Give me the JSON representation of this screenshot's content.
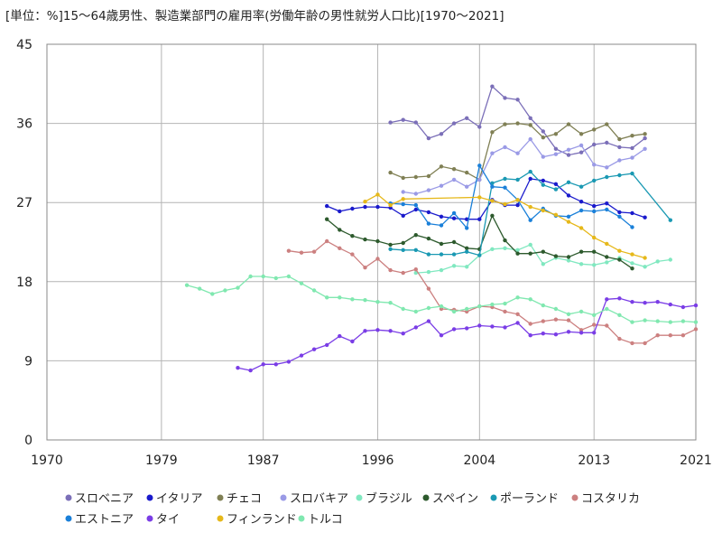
{
  "chart_data": {
    "type": "line",
    "title": "[単位：%]15～64歳男性、製造業部門の雇用率(労働年齢の男性就労人口比)[1970～2021]",
    "xlabel": "",
    "ylabel": "",
    "xlim": [
      1970,
      2021
    ],
    "ylim": [
      0,
      45
    ],
    "x_ticks": [
      1970,
      1979,
      1987,
      1996,
      2004,
      2013,
      2021
    ],
    "y_ticks": [
      0,
      9,
      18,
      27,
      36,
      45
    ],
    "grid": true,
    "legend_position": "bottom",
    "series": [
      {
        "name": "スロベニア",
        "color": "#7b6fb8",
        "x": [
          1997,
          1998,
          1999,
          2000,
          2001,
          2002,
          2003,
          2004,
          2005,
          2006,
          2007,
          2008,
          2009,
          2010,
          2011,
          2012,
          2013,
          2014,
          2015,
          2016,
          2017
        ],
        "y": [
          36.1,
          36.4,
          36.1,
          34.3,
          34.8,
          36.0,
          36.6,
          35.6,
          40.2,
          38.9,
          38.7,
          36.6,
          35.1,
          33.1,
          32.4,
          32.7,
          33.6,
          33.8,
          33.3,
          33.2,
          34.3
        ]
      },
      {
        "name": "イタリア",
        "color": "#1a1acc",
        "x": [
          1992,
          1993,
          1994,
          1995,
          1996,
          1997,
          1998,
          1999,
          2000,
          2001,
          2002,
          2003,
          2004,
          2005,
          2006,
          2007,
          2008,
          2009,
          2010,
          2011,
          2012,
          2013,
          2014,
          2015,
          2016,
          2017
        ],
        "y": [
          26.6,
          26.0,
          26.3,
          26.5,
          26.5,
          26.4,
          25.5,
          26.2,
          25.9,
          25.4,
          25.2,
          25.1,
          25.1,
          27.3,
          26.7,
          26.7,
          29.7,
          29.5,
          29.1,
          27.8,
          27.1,
          26.6,
          26.9,
          25.9,
          25.8,
          25.3
        ]
      },
      {
        "name": "チェコ",
        "color": "#808055",
        "x": [
          1997,
          1998,
          1999,
          2000,
          2001,
          2002,
          2003,
          2004,
          2005,
          2006,
          2007,
          2008,
          2009,
          2010,
          2011,
          2012,
          2013,
          2014,
          2015,
          2016,
          2017
        ],
        "y": [
          30.4,
          29.8,
          29.9,
          30.0,
          31.1,
          30.8,
          30.4,
          29.6,
          35.0,
          35.9,
          36.0,
          35.8,
          34.4,
          34.8,
          35.9,
          34.8,
          35.3,
          35.9,
          34.2,
          34.6,
          34.8
        ]
      },
      {
        "name": "スロバキア",
        "color": "#9a9ae6",
        "x": [
          1998,
          1999,
          2000,
          2001,
          2002,
          2003,
          2004,
          2005,
          2006,
          2007,
          2008,
          2009,
          2010,
          2011,
          2012,
          2013,
          2014,
          2015,
          2016,
          2017
        ],
        "y": [
          28.2,
          28.0,
          28.4,
          28.9,
          29.6,
          28.8,
          29.6,
          32.6,
          33.3,
          32.6,
          34.2,
          32.2,
          32.5,
          33.0,
          33.5,
          31.3,
          31.0,
          31.8,
          32.1,
          33.1
        ]
      },
      {
        "name": "ブラジル",
        "color": "#80e8c0",
        "x": [
          1999,
          2000,
          2001,
          2002,
          2003,
          2004,
          2005,
          2006,
          2007,
          2008,
          2009,
          2010,
          2011,
          2012,
          2013,
          2014,
          2015,
          2016,
          2017,
          2018,
          2019
        ],
        "y": [
          19.0,
          19.1,
          19.3,
          19.8,
          19.7,
          21.0,
          21.7,
          21.8,
          21.6,
          22.2,
          20.0,
          20.7,
          20.4,
          20.0,
          19.9,
          20.2,
          20.7,
          20.1,
          19.7,
          20.3,
          20.5
        ]
      },
      {
        "name": "スペイン",
        "color": "#2d5a2d",
        "x": [
          1992,
          1993,
          1994,
          1995,
          1996,
          1997,
          1998,
          1999,
          2000,
          2001,
          2002,
          2003,
          2004,
          2005,
          2006,
          2007,
          2008,
          2009,
          2010,
          2011,
          2012,
          2013,
          2014,
          2015,
          2016
        ],
        "y": [
          25.1,
          23.9,
          23.2,
          22.8,
          22.6,
          22.2,
          22.4,
          23.3,
          22.9,
          22.3,
          22.5,
          21.8,
          21.7,
          25.5,
          22.7,
          21.2,
          21.2,
          21.4,
          20.9,
          20.8,
          21.4,
          21.4,
          20.8,
          20.5,
          19.5
        ]
      },
      {
        "name": "ポーランド",
        "color": "#1a99b3",
        "x": [
          1997,
          1998,
          1999,
          2000,
          2001,
          2002,
          2003,
          2004,
          2005,
          2006,
          2007,
          2008,
          2009,
          2010,
          2011,
          2012,
          2013,
          2014,
          2015,
          2016,
          2019
        ],
        "y": [
          21.7,
          21.6,
          21.6,
          21.1,
          21.1,
          21.1,
          21.4,
          21.0,
          29.2,
          29.7,
          29.6,
          30.5,
          29.0,
          28.5,
          29.3,
          28.8,
          29.5,
          29.9,
          30.1,
          30.3,
          25.0
        ]
      },
      {
        "name": "コスタリカ",
        "color": "#cc8080",
        "x": [
          1989,
          1990,
          1991,
          1992,
          1993,
          1994,
          1995,
          1996,
          1997,
          1998,
          1999,
          2000,
          2001,
          2002,
          2003,
          2004,
          2005,
          2006,
          2007,
          2008,
          2009,
          2010,
          2011,
          2012,
          2013,
          2014,
          2015,
          2016,
          2017,
          2018,
          2019,
          2020,
          2021
        ],
        "y": [
          21.5,
          21.3,
          21.4,
          22.6,
          21.8,
          21.1,
          19.6,
          20.6,
          19.3,
          19.0,
          19.4,
          17.2,
          14.9,
          14.8,
          14.6,
          15.2,
          15.1,
          14.6,
          14.3,
          13.2,
          13.5,
          13.7,
          13.6,
          12.5,
          13.1,
          13.0,
          11.5,
          11.0,
          11.0,
          11.9,
          11.9,
          11.9,
          12.6
        ]
      },
      {
        "name": "エストニア",
        "color": "#1a80d9",
        "x": [
          1997,
          1998,
          1999,
          2000,
          2001,
          2002,
          2003,
          2004,
          2005,
          2006,
          2007,
          2008,
          2009,
          2010,
          2011,
          2012,
          2013,
          2014,
          2015,
          2016
        ],
        "y": [
          26.9,
          26.8,
          26.7,
          24.6,
          24.4,
          25.8,
          24.1,
          31.2,
          28.8,
          28.7,
          27.3,
          25.0,
          26.3,
          25.5,
          25.4,
          26.1,
          26.0,
          26.2,
          25.4,
          24.2
        ]
      },
      {
        "name": "タイ",
        "color": "#7a3de6",
        "x": [
          1985,
          1986,
          1987,
          1988,
          1989,
          1990,
          1991,
          1992,
          1993,
          1994,
          1995,
          1996,
          1997,
          1998,
          1999,
          2000,
          2001,
          2002,
          2003,
          2004,
          2005,
          2006,
          2007,
          2008,
          2009,
          2010,
          2011,
          2012,
          2013,
          2014,
          2015,
          2016,
          2017,
          2018,
          2019,
          2020,
          2021
        ],
        "y": [
          8.2,
          7.9,
          8.6,
          8.6,
          8.9,
          9.6,
          10.3,
          10.8,
          11.8,
          11.2,
          12.4,
          12.5,
          12.4,
          12.1,
          12.8,
          13.5,
          11.9,
          12.6,
          12.7,
          13.0,
          12.9,
          12.8,
          13.3,
          11.9,
          12.1,
          12.0,
          12.3,
          12.2,
          12.2,
          16.0,
          16.1,
          15.7,
          15.6,
          15.7,
          15.4,
          15.1,
          15.3
        ]
      },
      {
        "name": "フィンランド",
        "color": "#e6b81a",
        "x": [
          1995,
          1996,
          1997,
          1998,
          2004,
          2005,
          2006,
          2007,
          2008,
          2009,
          2010,
          2011,
          2012,
          2013,
          2014,
          2015,
          2016,
          2017
        ],
        "y": [
          27.1,
          27.9,
          26.7,
          27.4,
          27.6,
          27.2,
          26.8,
          27.3,
          26.5,
          26.1,
          25.6,
          24.8,
          24.1,
          23.0,
          22.3,
          21.5,
          21.1,
          20.7
        ]
      },
      {
        "name": "トルコ",
        "color": "#80e8b0",
        "x": [
          1981,
          1982,
          1983,
          1984,
          1985,
          1986,
          1987,
          1988,
          1989,
          1990,
          1991,
          1992,
          1993,
          1994,
          1995,
          1996,
          1997,
          1998,
          1999,
          2000,
          2001,
          2002,
          2003,
          2004,
          2005,
          2006,
          2007,
          2008,
          2009,
          2010,
          2011,
          2012,
          2013,
          2014,
          2015,
          2016,
          2017,
          2018,
          2019,
          2020,
          2021
        ],
        "y": [
          17.6,
          17.2,
          16.6,
          17.0,
          17.3,
          18.6,
          18.6,
          18.4,
          18.6,
          17.8,
          17.0,
          16.2,
          16.2,
          16.0,
          15.9,
          15.7,
          15.6,
          14.9,
          14.6,
          15.0,
          15.2,
          14.6,
          14.9,
          15.2,
          15.4,
          15.5,
          16.2,
          16.0,
          15.3,
          14.9,
          14.3,
          14.6,
          14.2,
          14.9,
          14.2,
          13.4,
          13.6,
          13.5,
          13.4,
          13.5,
          13.4
        ]
      }
    ]
  }
}
